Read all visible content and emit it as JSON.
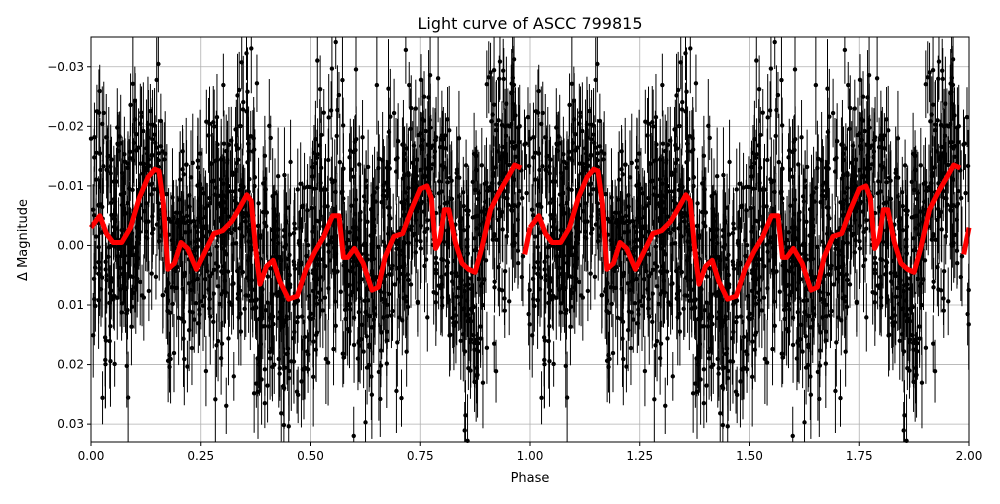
{
  "chart_data": {
    "type": "scatter",
    "title": "Light curve of ASCC 799815",
    "xlabel": "Phase",
    "ylabel": "Δ Magnitude",
    "xlim": [
      0.0,
      2.0
    ],
    "ylim": [
      0.033,
      -0.035
    ],
    "y_inverted": true,
    "grid": true,
    "x_ticks": [
      0.0,
      0.25,
      0.5,
      0.75,
      1.0,
      1.25,
      1.5,
      1.75,
      2.0
    ],
    "x_tick_labels": [
      "0.00",
      "0.25",
      "0.50",
      "0.75",
      "1.00",
      "1.25",
      "1.50",
      "1.75",
      "2.00"
    ],
    "y_ticks": [
      -0.03,
      -0.02,
      -0.01,
      0.0,
      0.01,
      0.02,
      0.03
    ],
    "y_tick_labels": [
      "−0.03",
      "−0.02",
      "−0.01",
      "0.00",
      "0.01",
      "0.02",
      "0.03"
    ],
    "series": [
      {
        "kind": "points_with_errorbars",
        "color": "#000000",
        "typical_error": 0.006,
        "scatter_std": 0.011,
        "note_series_repeats_at_phase_plus_1": true
      },
      {
        "kind": "binned_model_line",
        "color": "#ff0000",
        "x": [
          0.0,
          0.02,
          0.035,
          0.05,
          0.07,
          0.09,
          0.11,
          0.13,
          0.145,
          0.155,
          0.165,
          0.175,
          0.19,
          0.205,
          0.22,
          0.24,
          0.26,
          0.28,
          0.3,
          0.32,
          0.34,
          0.355,
          0.365,
          0.375,
          0.385,
          0.4,
          0.415,
          0.43,
          0.45,
          0.47,
          0.49,
          0.51,
          0.53,
          0.55,
          0.565,
          0.575,
          0.585,
          0.6,
          0.62,
          0.64,
          0.655,
          0.67,
          0.69,
          0.71,
          0.73,
          0.75,
          0.765,
          0.775,
          0.785,
          0.795,
          0.805,
          0.815,
          0.83,
          0.845,
          0.86,
          0.875,
          0.89,
          0.91,
          0.93,
          0.95,
          0.965,
          0.98
        ],
        "y": [
          -0.003,
          -0.005,
          -0.002,
          -0.0005,
          -0.0005,
          -0.003,
          -0.008,
          -0.0115,
          -0.0128,
          -0.0125,
          -0.007,
          0.004,
          0.003,
          -0.0005,
          0.0005,
          0.004,
          0.001,
          -0.002,
          -0.0025,
          -0.004,
          -0.0065,
          -0.0085,
          -0.0075,
          0.0005,
          0.0065,
          0.0035,
          0.0025,
          0.006,
          0.009,
          0.0085,
          0.004,
          0.001,
          -0.0015,
          -0.005,
          -0.005,
          0.002,
          0.002,
          0.0005,
          0.003,
          0.0075,
          0.007,
          0.002,
          -0.0015,
          -0.002,
          -0.006,
          -0.0095,
          -0.01,
          -0.008,
          0.0005,
          -0.001,
          -0.006,
          -0.006,
          -0.0005,
          0.003,
          0.004,
          0.0045,
          0.0005,
          -0.006,
          -0.009,
          -0.0115,
          -0.0135,
          -0.013
        ]
      }
    ]
  }
}
